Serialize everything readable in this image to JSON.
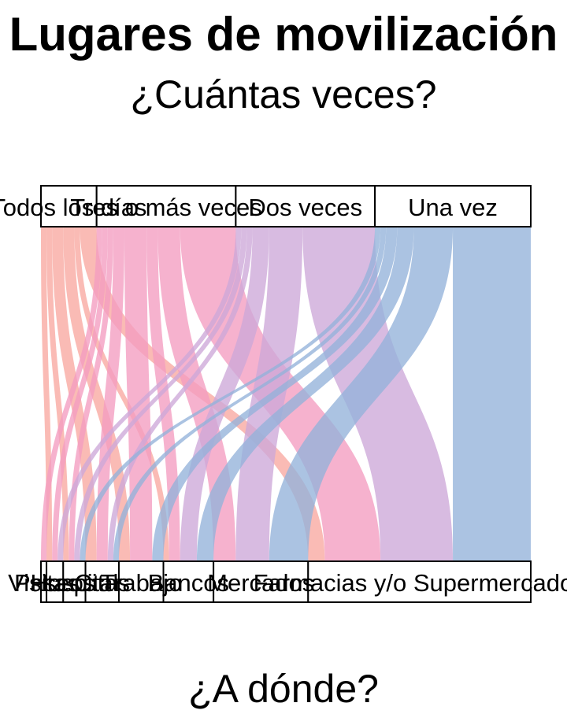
{
  "chart_data": {
    "type": "alluvial",
    "title": "Lugares de movilización",
    "subtitle": "¿Cuántas veces?",
    "xlabel": "¿A dónde?",
    "top_axis": [
      {
        "label": "Todos los días",
        "value": 10,
        "color": "#f8a8a0"
      },
      {
        "label": "Tres o más veces",
        "value": 25,
        "color": "#f49cc0"
      },
      {
        "label": "Dos veces",
        "value": 25,
        "color": "#cda8d8"
      },
      {
        "label": "Una vez",
        "value": 28,
        "color": "#94b2da"
      }
    ],
    "bottom_axis": [
      {
        "label": "Visitas",
        "value": 1
      },
      {
        "label": "Paseos",
        "value": 3
      },
      {
        "label": "Hospital",
        "value": 4
      },
      {
        "label": "Citas",
        "value": 6
      },
      {
        "label": "Trabajo",
        "value": 8
      },
      {
        "label": "Bancos",
        "value": 9
      },
      {
        "label": "Mercados",
        "value": 17
      },
      {
        "label": "Farmacias y/o Supermercados",
        "value": 40
      }
    ],
    "flows": [
      {
        "from": "Todos los días",
        "to": "Paseos",
        "value": 1
      },
      {
        "from": "Todos los días",
        "to": "Hospital",
        "value": 1
      },
      {
        "from": "Todos los días",
        "to": "Citas",
        "value": 2
      },
      {
        "from": "Todos los días",
        "to": "Trabajo",
        "value": 2
      },
      {
        "from": "Todos los días",
        "to": "Bancos",
        "value": 1
      },
      {
        "from": "Todos los días",
        "to": "Farmacias y/o Supermercados",
        "value": 3
      },
      {
        "from": "Tres o más veces",
        "to": "Visitas",
        "value": 1
      },
      {
        "from": "Tres o más veces",
        "to": "Paseos",
        "value": 1
      },
      {
        "from": "Tres o más veces",
        "to": "Hospital",
        "value": 1
      },
      {
        "from": "Tres o más veces",
        "to": "Citas",
        "value": 2
      },
      {
        "from": "Tres o más veces",
        "to": "Trabajo",
        "value": 4
      },
      {
        "from": "Tres o más veces",
        "to": "Bancos",
        "value": 2
      },
      {
        "from": "Tres o más veces",
        "to": "Mercados",
        "value": 4
      },
      {
        "from": "Tres o más veces",
        "to": "Farmacias y/o Supermercados",
        "value": 10
      },
      {
        "from": "Dos veces",
        "to": "Paseos",
        "value": 1
      },
      {
        "from": "Dos veces",
        "to": "Hospital",
        "value": 1
      },
      {
        "from": "Dos veces",
        "to": "Citas",
        "value": 1
      },
      {
        "from": "Dos veces",
        "to": "Bancos",
        "value": 3
      },
      {
        "from": "Dos veces",
        "to": "Mercados",
        "value": 6
      },
      {
        "from": "Dos veces",
        "to": "Farmacias y/o Supermercados",
        "value": 13
      },
      {
        "from": "Una vez",
        "to": "Hospital",
        "value": 1
      },
      {
        "from": "Una vez",
        "to": "Citas",
        "value": 1
      },
      {
        "from": "Una vez",
        "to": "Trabajo",
        "value": 2
      },
      {
        "from": "Una vez",
        "to": "Bancos",
        "value": 3
      },
      {
        "from": "Una vez",
        "to": "Mercados",
        "value": 7
      },
      {
        "from": "Una vez",
        "to": "Farmacias y/o Supermercados",
        "value": 14
      }
    ],
    "legend": "none",
    "grid": false
  }
}
